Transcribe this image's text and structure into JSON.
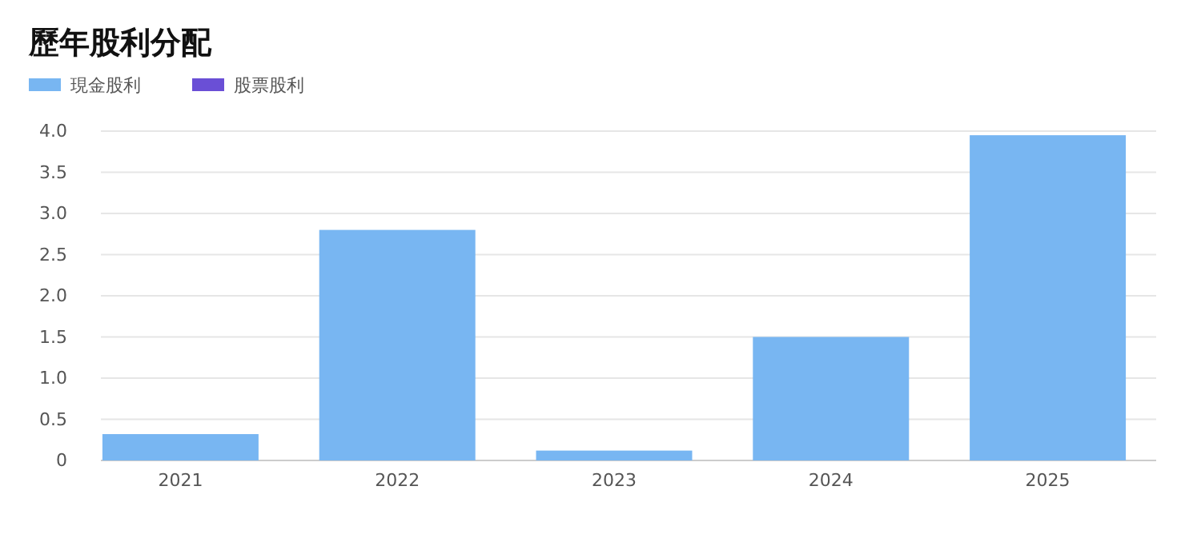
{
  "chart_data": {
    "type": "bar",
    "title": "歷年股利分配",
    "categories": [
      "2021",
      "2022",
      "2023",
      "2024",
      "2025"
    ],
    "series": [
      {
        "name": "現金股利",
        "color": "#78b6f2",
        "values": [
          0.32,
          2.8,
          0.12,
          1.5,
          3.95
        ]
      },
      {
        "name": "股票股利",
        "color": "#6a4fd6",
        "values": [
          0,
          0,
          0,
          0,
          0
        ]
      }
    ],
    "stacked": true,
    "ylim": [
      0,
      4
    ],
    "yticks": [
      {
        "value": 0,
        "label": "0"
      },
      {
        "value": 0.5,
        "label": "0.5"
      },
      {
        "value": 1,
        "label": "1.0"
      },
      {
        "value": 1.5,
        "label": "1.5"
      },
      {
        "value": 2,
        "label": "2.0"
      },
      {
        "value": 2.5,
        "label": "2.5"
      },
      {
        "value": 3,
        "label": "3.0"
      },
      {
        "value": 3.5,
        "label": "3.5"
      },
      {
        "value": 4,
        "label": "4.0"
      }
    ],
    "grid": "y",
    "legend": "top left"
  }
}
